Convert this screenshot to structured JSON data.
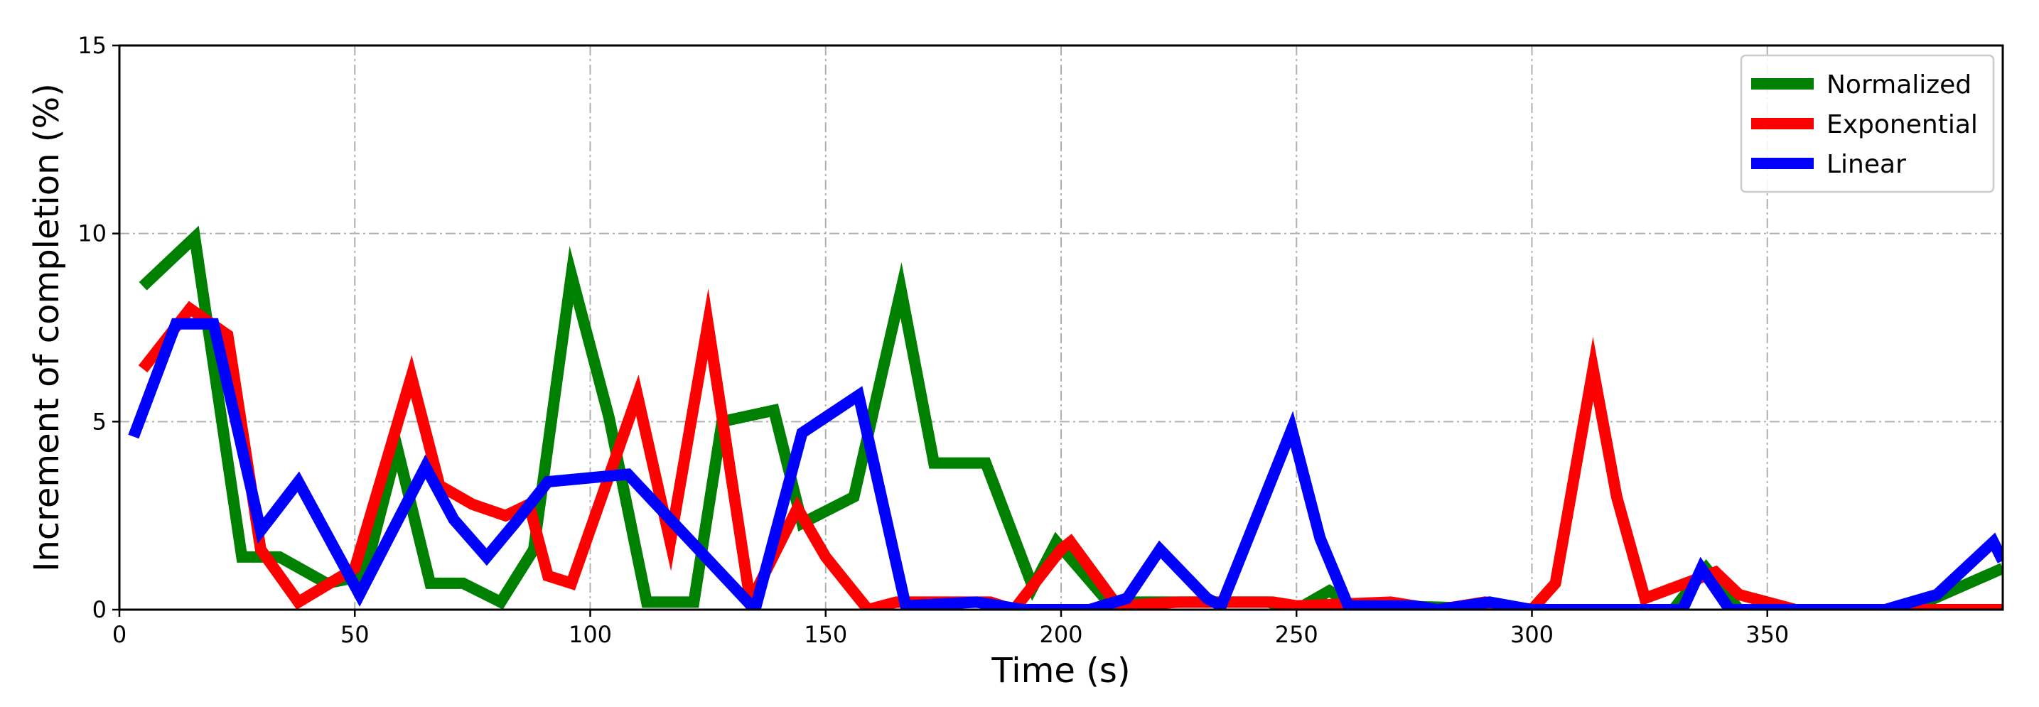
{
  "chart_data": {
    "type": "line",
    "xlabel": "Time (s)",
    "ylabel": "Increment of completion (%)",
    "xlim": [
      0,
      400
    ],
    "ylim": [
      0,
      15
    ],
    "xticks": [
      0,
      50,
      100,
      150,
      200,
      250,
      300,
      350
    ],
    "yticks": [
      0,
      5,
      10,
      15
    ],
    "grid": true,
    "legend_position": "top-right",
    "series": [
      {
        "name": "Normalized",
        "color": "#008000",
        "points": [
          [
            5,
            8.6
          ],
          [
            16,
            9.9
          ],
          [
            26,
            1.4
          ],
          [
            34,
            1.4
          ],
          [
            44,
            0.7
          ],
          [
            52,
            0.9
          ],
          [
            59,
            4.3
          ],
          [
            66,
            0.7
          ],
          [
            73,
            0.7
          ],
          [
            81,
            0.2
          ],
          [
            88,
            1.6
          ],
          [
            96,
            8.9
          ],
          [
            104,
            5.1
          ],
          [
            112,
            0.2
          ],
          [
            122,
            0.2
          ],
          [
            128,
            5
          ],
          [
            139,
            5.3
          ],
          [
            145,
            2.3
          ],
          [
            156,
            3
          ],
          [
            166,
            8.5
          ],
          [
            173,
            3.9
          ],
          [
            184,
            3.9
          ],
          [
            194,
            0.6
          ],
          [
            199,
            1.8
          ],
          [
            210,
            0.2
          ],
          [
            220,
            0.2
          ],
          [
            244,
            0.2
          ],
          [
            250,
            0
          ],
          [
            257,
            0.5
          ],
          [
            262,
            0.1
          ],
          [
            270,
            0.1
          ],
          [
            300,
            0
          ],
          [
            330,
            0
          ],
          [
            337,
            1.1
          ],
          [
            344,
            0
          ],
          [
            380,
            0
          ],
          [
            400,
            1.1
          ]
        ]
      },
      {
        "name": "Exponential",
        "color": "#ff0000",
        "points": [
          [
            5,
            6.4
          ],
          [
            15,
            8
          ],
          [
            23,
            7.3
          ],
          [
            30,
            1.6
          ],
          [
            38,
            0.2
          ],
          [
            50,
            1.1
          ],
          [
            62,
            6.2
          ],
          [
            68,
            3.3
          ],
          [
            75,
            2.8
          ],
          [
            82,
            2.5
          ],
          [
            87,
            2.8
          ],
          [
            91,
            0.9
          ],
          [
            96,
            0.7
          ],
          [
            110,
            5.7
          ],
          [
            117,
            1.8
          ],
          [
            125,
            7.6
          ],
          [
            134,
            0.2
          ],
          [
            144,
            2.7
          ],
          [
            150,
            1.4
          ],
          [
            159,
            0
          ],
          [
            165,
            0.2
          ],
          [
            185,
            0.2
          ],
          [
            190,
            0
          ],
          [
            200,
            1.6
          ],
          [
            202,
            1.8
          ],
          [
            212,
            0.1
          ],
          [
            225,
            0.2
          ],
          [
            245,
            0.2
          ],
          [
            250,
            0.1
          ],
          [
            270,
            0.2
          ],
          [
            280,
            0
          ],
          [
            290,
            0.2
          ],
          [
            300,
            0
          ],
          [
            305,
            0.7
          ],
          [
            313,
            6.4
          ],
          [
            318,
            3
          ],
          [
            324,
            0.3
          ],
          [
            339,
            1
          ],
          [
            344,
            0.4
          ],
          [
            356,
            0
          ],
          [
            400,
            0
          ]
        ]
      },
      {
        "name": "Linear",
        "color": "#0000ff",
        "points": [
          [
            3,
            4.6
          ],
          [
            12,
            7.6
          ],
          [
            20,
            7.6
          ],
          [
            30,
            2.1
          ],
          [
            38,
            3.4
          ],
          [
            51,
            0.4
          ],
          [
            65,
            3.8
          ],
          [
            71,
            2.4
          ],
          [
            78,
            1.4
          ],
          [
            84,
            2.3
          ],
          [
            91,
            3.4
          ],
          [
            108,
            3.6
          ],
          [
            135,
            0
          ],
          [
            145,
            4.7
          ],
          [
            157,
            5.7
          ],
          [
            167,
            0.1
          ],
          [
            182,
            0.2
          ],
          [
            192,
            0
          ],
          [
            206,
            0
          ],
          [
            214,
            0.3
          ],
          [
            221,
            1.6
          ],
          [
            231,
            0.3
          ],
          [
            234,
            0.1
          ],
          [
            249,
            4.8
          ],
          [
            255,
            1.9
          ],
          [
            261,
            0.1
          ],
          [
            275,
            0.1
          ],
          [
            280,
            0
          ],
          [
            291,
            0.2
          ],
          [
            300,
            0
          ],
          [
            332,
            0
          ],
          [
            336,
            1.1
          ],
          [
            342,
            0
          ],
          [
            375,
            0
          ],
          [
            386,
            0.4
          ],
          [
            398,
            1.8
          ],
          [
            400,
            1.3
          ]
        ]
      }
    ]
  }
}
